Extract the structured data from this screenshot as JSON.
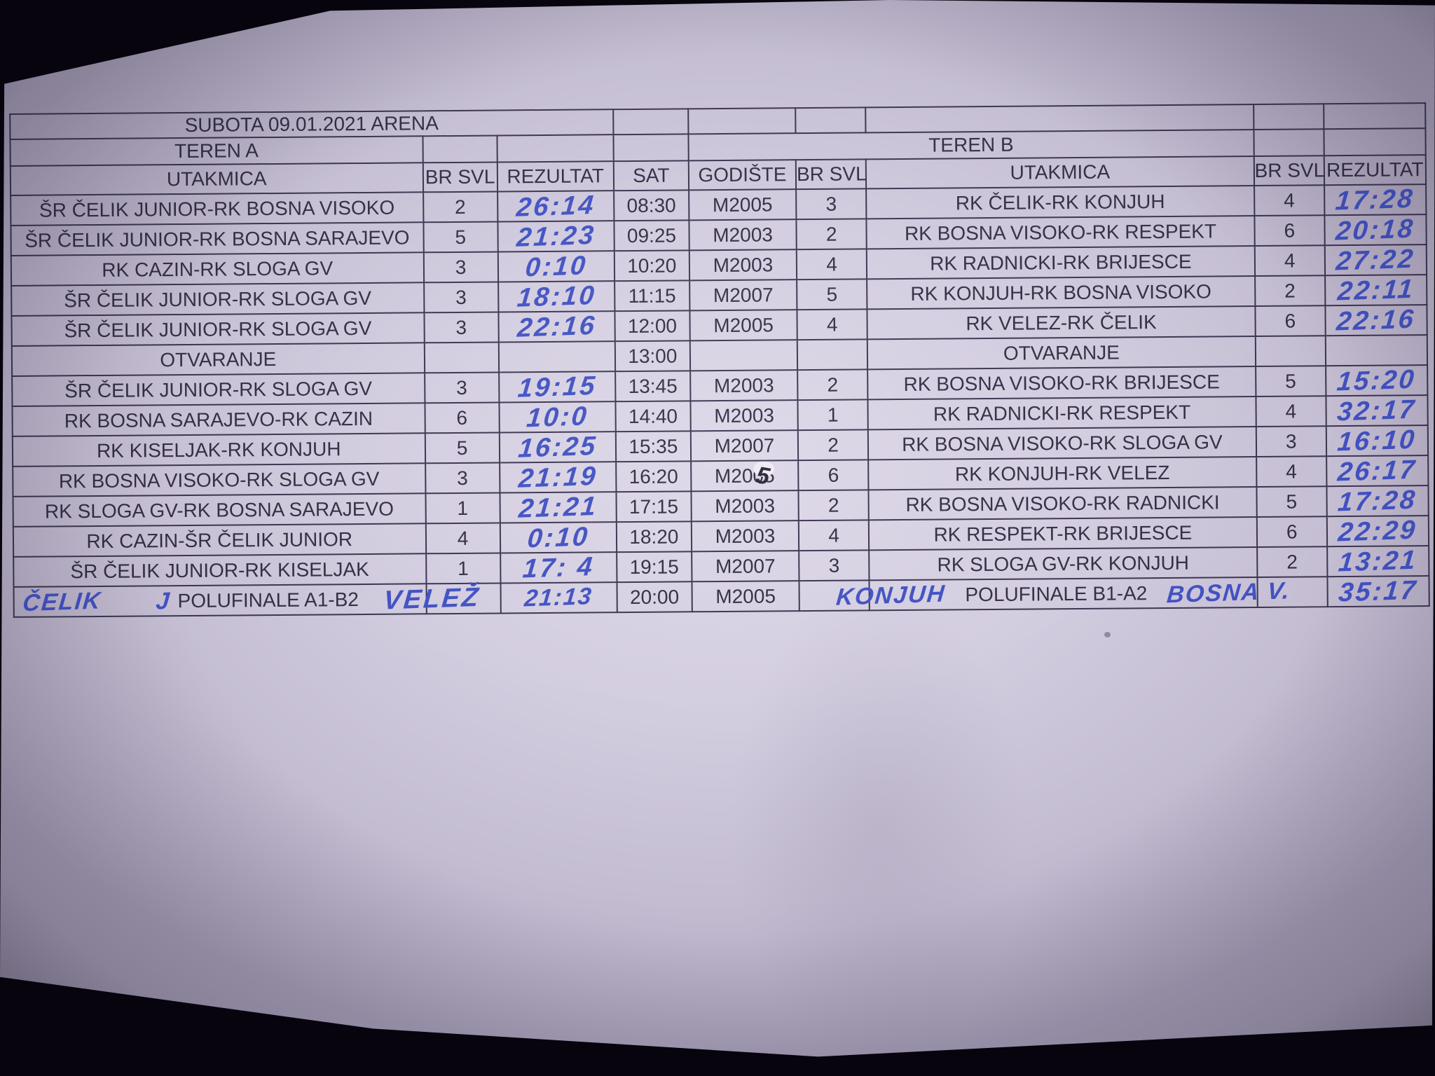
{
  "photo": {
    "background": "#06040c",
    "paper_color": "#d2ccdf",
    "ink_blue": "#4252c2",
    "ink_dark": "#2b2537",
    "grid_line": "#3b3550"
  },
  "title": "SUBOTA 09.01.2021 ARENA",
  "sections": {
    "teren_a": "TEREN A",
    "teren_b": "TEREN B"
  },
  "headers": {
    "utakmica": "UTAKMICA",
    "br_svl": "BR SVL",
    "rezultat": "REZULTAT",
    "sat": "SAT",
    "godiste": "GODIŠTE"
  },
  "rows": [
    {
      "a_match": "ŠR ČELIK JUNIOR-RK BOSNA VISOKO",
      "a_br": "2",
      "a_rez": "26:14",
      "sat": "08:30",
      "godiste": "M2005",
      "b_br1": "3",
      "b_match": "RK ČELIK-RK KONJUH",
      "b_br2": "4",
      "b_rez": "17:28"
    },
    {
      "a_match": "ŠR ČELIK JUNIOR-RK BOSNA SARAJEVO",
      "a_br": "5",
      "a_rez": "21:23",
      "sat": "09:25",
      "godiste": "M2003",
      "b_br1": "2",
      "b_match": "RK BOSNA VISOKO-RK RESPEKT",
      "b_br2": "6",
      "b_rez": "20:18"
    },
    {
      "a_match": "RK CAZIN-RK SLOGA GV",
      "a_br": "3",
      "a_rez": "0:10",
      "sat": "10:20",
      "godiste": "M2003",
      "b_br1": "4",
      "b_match": "RK RADNICKI-RK BRIJESCE",
      "b_br2": "4",
      "b_rez": "27:22"
    },
    {
      "a_match": "ŠR ČELIK JUNIOR-RK SLOGA GV",
      "a_br": "3",
      "a_rez": "18:10",
      "sat": "11:15",
      "godiste": "M2007",
      "b_br1": "5",
      "b_match": "RK KONJUH-RK BOSNA VISOKO",
      "b_br2": "2",
      "b_rez": "22:11"
    },
    {
      "a_match": "ŠR ČELIK JUNIOR-RK SLOGA GV",
      "a_br": "3",
      "a_rez": "22:16",
      "sat": "12:00",
      "godiste": "M2005",
      "b_br1": "4",
      "b_match": "RK VELEZ-RK ČELIK",
      "b_br2": "6",
      "b_rez": "22:16"
    },
    {
      "a_match": "OTVARANJE",
      "a_br": "",
      "a_rez": "",
      "sat": "13:00",
      "godiste": "",
      "b_br1": "",
      "b_match": "OTVARANJE",
      "b_br2": "",
      "b_rez": ""
    },
    {
      "a_match": "ŠR ČELIK JUNIOR-RK SLOGA GV",
      "a_br": "3",
      "a_rez": "19:15",
      "sat": "13:45",
      "godiste": "M2003",
      "b_br1": "2",
      "b_match": "RK BOSNA VISOKO-RK BRIJESCE",
      "b_br2": "5",
      "b_rez": "15:20"
    },
    {
      "a_match": "RK BOSNA SARAJEVO-RK CAZIN",
      "a_br": "6",
      "a_rez": "10:0",
      "sat": "14:40",
      "godiste": "M2003",
      "b_br1": "1",
      "b_match": "RK RADNICKI-RK RESPEKT",
      "b_br2": "4",
      "b_rez": "32:17"
    },
    {
      "a_match": "RK KISELJAK-RK KONJUH",
      "a_br": "5",
      "a_rez": "16:25",
      "sat": "15:35",
      "godiste": "M2007",
      "b_br1": "2",
      "b_match": "RK BOSNA VISOKO-RK SLOGA GV",
      "b_br2": "3",
      "b_rez": "16:10"
    },
    {
      "a_match": "RK BOSNA VISOKO-RK SLOGA GV",
      "a_br": "3",
      "a_rez": "21:19",
      "sat": "16:20",
      "godiste": "M2005",
      "god_hw": "5",
      "b_br1": "6",
      "b_match": "RK KONJUH-RK VELEZ",
      "b_br2": "4",
      "b_rez": "26:17"
    },
    {
      "a_match": "RK SLOGA GV-RK BOSNA SARAJEVO",
      "a_br": "1",
      "a_rez": "21:21",
      "sat": "17:15",
      "godiste": "M2003",
      "b_br1": "2",
      "b_match": "RK BOSNA VISOKO-RK RADNICKI",
      "b_br2": "5",
      "b_rez": "17:28"
    },
    {
      "a_match": "RK CAZIN-ŠR ČELIK JUNIOR",
      "a_br": "4",
      "a_rez": "0:10",
      "sat": "18:20",
      "godiste": "M2003",
      "b_br1": "4",
      "b_match": "RK RESPEKT-RK BRIJESCE",
      "b_br2": "6",
      "b_rez": "22:29"
    },
    {
      "a_match": "ŠR ČELIK JUNIOR-RK KISELJAK",
      "a_br": "1",
      "a_rez": "17: 4",
      "sat": "19:15",
      "godiste": "M2007",
      "b_br1": "3",
      "b_match": "RK SLOGA GV-RK KONJUH",
      "b_br2": "2",
      "b_rez": "13:21"
    },
    {
      "type": "final",
      "a_hw_team1": "ČELIK",
      "a_hw_mark": "J",
      "a_label": "POLUFINALE A1-B2",
      "a_hw_team2": "VELEŽ",
      "a_rez": "21:13",
      "a_br": "",
      "sat": "20:00",
      "godiste": "M2005",
      "b_br1": "",
      "b_hw_team1": "KONJUH",
      "b_label": "POLUFINALE B1-A2",
      "b_hw_team2": "BOSNA V.",
      "b_rez": "35:17",
      "b_br2": ""
    }
  ]
}
